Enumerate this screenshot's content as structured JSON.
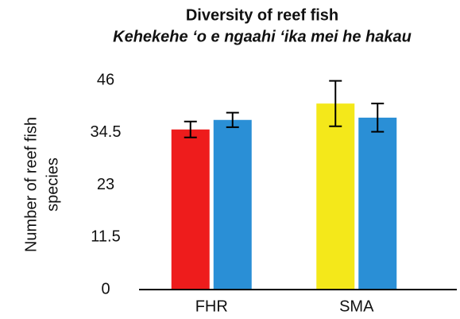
{
  "chart_data": {
    "type": "bar",
    "title": "Diversity of reef fish",
    "subtitle": "Kehekehe ‘o e ngaahi ‘ika mei he hakau",
    "ylabel": [
      "Number of reef fish",
      "species"
    ],
    "categories": [
      "FHR",
      "SMA"
    ],
    "series": [
      {
        "colors": [
          "#ee1c1c",
          "#f4e81a"
        ],
        "values": [
          35.2,
          40.9
        ],
        "errors": [
          1.75,
          5.0
        ]
      },
      {
        "color": "#2a8fd6",
        "values": [
          37.3,
          37.8
        ],
        "errors": [
          1.6,
          3.1
        ]
      }
    ],
    "ylim": [
      0,
      46
    ],
    "yticks": [
      0,
      11.5,
      23,
      34.5,
      46
    ]
  }
}
